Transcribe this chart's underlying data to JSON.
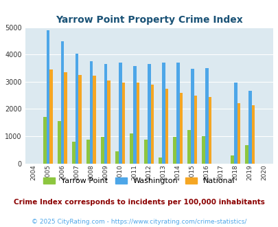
{
  "title": "Yarrow Point Property Crime Index",
  "years": [
    2004,
    2005,
    2006,
    2007,
    2008,
    2009,
    2010,
    2011,
    2012,
    2013,
    2014,
    2015,
    2016,
    2017,
    2018,
    2019,
    2020
  ],
  "yarrow_point": [
    0,
    1700,
    1560,
    800,
    870,
    970,
    450,
    1100,
    880,
    220,
    970,
    1220,
    1010,
    0,
    290,
    670,
    0
  ],
  "washington": [
    0,
    4900,
    4480,
    4020,
    3760,
    3650,
    3700,
    3570,
    3650,
    3700,
    3700,
    3480,
    3500,
    0,
    2980,
    2660,
    0
  ],
  "national": [
    0,
    3440,
    3340,
    3250,
    3210,
    3050,
    2960,
    2960,
    2900,
    2730,
    2600,
    2480,
    2450,
    0,
    2200,
    2130,
    0
  ],
  "bar_width": 0.22,
  "yarrow_color": "#8dc63f",
  "washington_color": "#4da6e8",
  "national_color": "#f5a623",
  "bg_color": "#dce9f0",
  "title_color": "#1a5276",
  "ylim": [
    0,
    5000
  ],
  "yticks": [
    0,
    1000,
    2000,
    3000,
    4000,
    5000
  ],
  "legend_labels": [
    "Yarrow Point",
    "Washington",
    "National"
  ],
  "footnote1": "Crime Index corresponds to incidents per 100,000 inhabitants",
  "footnote2": "© 2025 CityRating.com - https://www.cityrating.com/crime-statistics/",
  "footnote1_color": "#8b0000",
  "footnote2_color": "#4da6e8"
}
